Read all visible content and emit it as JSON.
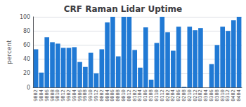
{
  "chart_data": {
    "type": "bar",
    "title": "CRF Raman Lidar Uptime",
    "ylabel": "percent",
    "categories": [
      "9802",
      "9804",
      "9806",
      "9808",
      "9810",
      "9812",
      "9902",
      "9904",
      "9906",
      "9908",
      "9910",
      "9912",
      "0002",
      "0004",
      "0006",
      "0008",
      "0010",
      "0012",
      "0102",
      "0104",
      "0106",
      "0108",
      "0110",
      "0112",
      "0202",
      "0204",
      "0206",
      "0208",
      "0210",
      "0212",
      "0302",
      "0304",
      "0306",
      "0308",
      "0310",
      "0312",
      "0402",
      "0404"
    ],
    "values": [
      54,
      21,
      71,
      64,
      62,
      56,
      56,
      57,
      36,
      29,
      49,
      20,
      54,
      92,
      100,
      44,
      100,
      100,
      53,
      28,
      85,
      11,
      63,
      100,
      78,
      52,
      86,
      1,
      86,
      81,
      84,
      0,
      33,
      60,
      86,
      80,
      95,
      100
    ],
    "color": "#2079d4",
    "ylim": [
      0,
      100
    ],
    "yticks": [
      0,
      20,
      40,
      60,
      80,
      100
    ],
    "grid": true
  }
}
